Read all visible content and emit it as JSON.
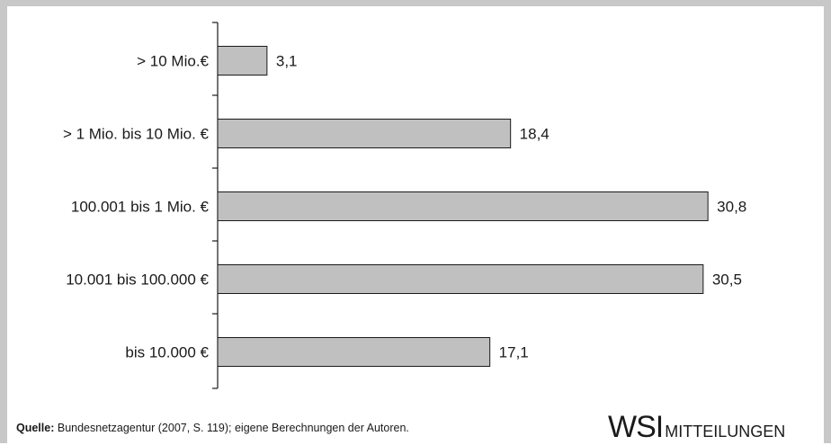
{
  "chart_data": {
    "type": "bar",
    "orientation": "horizontal",
    "categories": [
      "> 10 Mio.€",
      "> 1 Mio. bis 10 Mio. €",
      "100.001 bis 1 Mio. €",
      "10.001 bis 100.000 €",
      "bis 10.000 €"
    ],
    "values": [
      3.1,
      18.4,
      30.8,
      30.5,
      17.1
    ],
    "value_labels": [
      "3,1",
      "18,4",
      "30,8",
      "30,5",
      "17,1"
    ],
    "xlim": [
      0,
      31
    ],
    "grid": false,
    "bar_color": "#c0c0c0",
    "bar_border_color": "#1a1a1a"
  },
  "footer": {
    "source_label": "Quelle:",
    "source_text": "Bundesnetzagentur (2007, S. 119); eigene Berechnungen der Autoren.",
    "brand_wsi": "WSI",
    "brand_name": "MITTEILUNGEN"
  },
  "colors": {
    "frame": "#c8c8c8",
    "text": "#1a1a1a"
  }
}
